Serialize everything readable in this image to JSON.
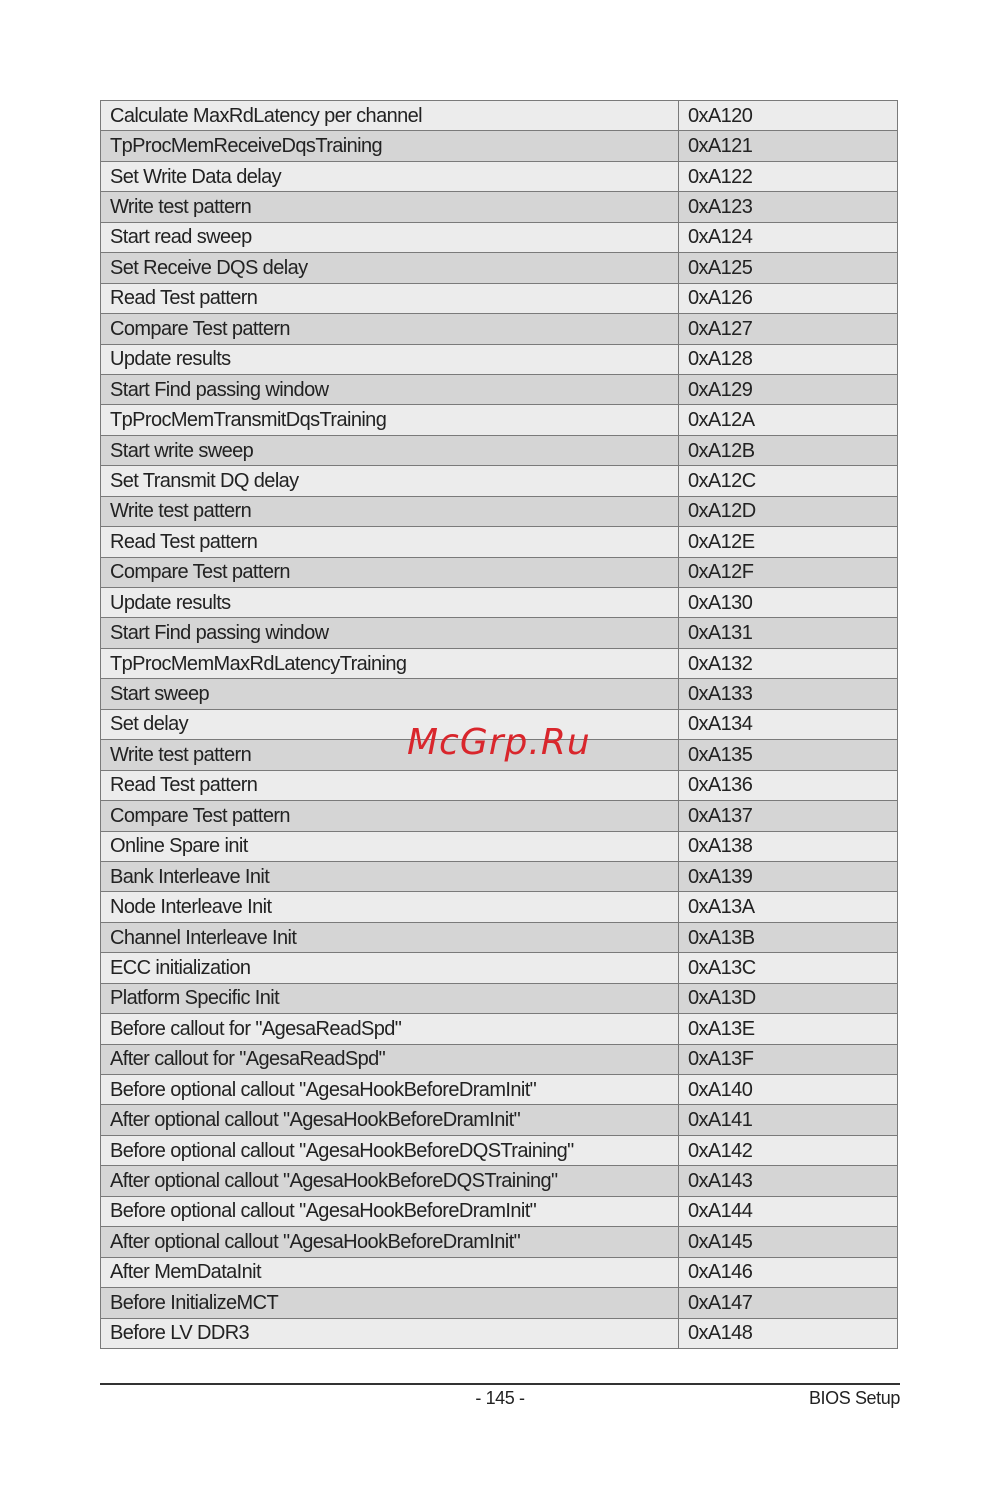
{
  "table": {
    "rows": [
      [
        "Calculate MaxRdLatency per channel",
        "0xA120"
      ],
      [
        "TpProcMemReceiveDqsTraining",
        "0xA121"
      ],
      [
        "Set Write Data delay",
        "0xA122"
      ],
      [
        "Write test pattern",
        "0xA123"
      ],
      [
        "Start read sweep",
        "0xA124"
      ],
      [
        "Set Receive DQS delay",
        "0xA125"
      ],
      [
        "Read Test pattern",
        "0xA126"
      ],
      [
        "Compare Test pattern",
        "0xA127"
      ],
      [
        "Update results",
        "0xA128"
      ],
      [
        "Start Find passing window",
        "0xA129"
      ],
      [
        "TpProcMemTransmitDqsTraining",
        "0xA12A"
      ],
      [
        "Start write sweep",
        "0xA12B"
      ],
      [
        "Set Transmit DQ delay",
        "0xA12C"
      ],
      [
        "Write test pattern",
        "0xA12D"
      ],
      [
        "Read Test pattern",
        "0xA12E"
      ],
      [
        "Compare Test pattern",
        "0xA12F"
      ],
      [
        "Update results",
        "0xA130"
      ],
      [
        "Start Find passing window",
        "0xA131"
      ],
      [
        "TpProcMemMaxRdLatencyTraining",
        "0xA132"
      ],
      [
        "Start sweep",
        "0xA133"
      ],
      [
        "Set delay",
        "0xA134"
      ],
      [
        "Write test pattern",
        "0xA135"
      ],
      [
        "Read Test pattern",
        "0xA136"
      ],
      [
        "Compare Test pattern",
        "0xA137"
      ],
      [
        "Online Spare init",
        "0xA138"
      ],
      [
        "Bank Interleave Init",
        "0xA139"
      ],
      [
        "Node Interleave Init",
        "0xA13A"
      ],
      [
        "Channel Interleave Init",
        "0xA13B"
      ],
      [
        "ECC initialization",
        "0xA13C"
      ],
      [
        "Platform Specific Init",
        "0xA13D"
      ],
      [
        "Before callout for \"AgesaReadSpd\"",
        "0xA13E"
      ],
      [
        "After callout for \"AgesaReadSpd\"",
        "0xA13F"
      ],
      [
        "Before optional callout \"AgesaHookBeforeDramInit\"",
        "0xA140"
      ],
      [
        "After optional callout \"AgesaHookBeforeDramInit\"",
        "0xA141"
      ],
      [
        "Before optional callout \"AgesaHookBeforeDQSTraining\"",
        "0xA142"
      ],
      [
        "After optional callout \"AgesaHookBeforeDQSTraining\"",
        "0xA143"
      ],
      [
        "Before optional callout \"AgesaHookBeforeDramInit\"",
        "0xA144"
      ],
      [
        "After optional callout \"AgesaHookBeforeDramInit\"",
        "0xA145"
      ],
      [
        "After MemDataInit",
        "0xA146"
      ],
      [
        "Before InitializeMCT",
        "0xA147"
      ],
      [
        "Before LV DDR3",
        "0xA148"
      ]
    ]
  },
  "watermark": "McGrp.Ru",
  "footer": {
    "page": "- 145 -",
    "section": "BIOS Setup"
  }
}
